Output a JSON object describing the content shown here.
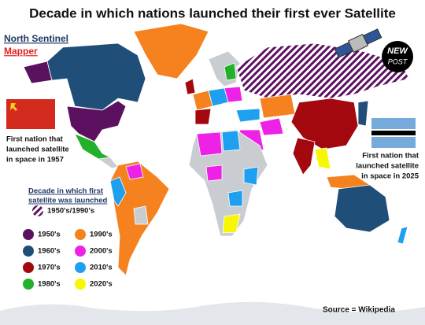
{
  "header": {
    "title": "Decade in which nations launched their first ever Satellite"
  },
  "brand": {
    "line1": "North Sentinel",
    "line2": "Mapper"
  },
  "logo": {
    "line1": "NEW",
    "line2": "POST"
  },
  "annotations": [
    {
      "lines": [
        "First nation that",
        "launched satellite",
        "in space in 1957"
      ]
    },
    {
      "lines": [
        "First nation that",
        "launched satellite",
        "in space in 2025"
      ]
    }
  ],
  "legend": {
    "title": [
      "Decade in which first",
      "satellite was launched"
    ],
    "items": [
      {
        "label": "1950's/1990's",
        "color": "#5c1160",
        "pattern": "hatch"
      },
      {
        "label": "1950's",
        "color": "#5c1160"
      },
      {
        "label": "1990's",
        "color": "#f5821f"
      },
      {
        "label": "1960's",
        "color": "#1f4e79"
      },
      {
        "label": "2000's",
        "color": "#ee22e6"
      },
      {
        "label": "1970's",
        "color": "#a3080e"
      },
      {
        "label": "2010's",
        "color": "#1f9ff0"
      },
      {
        "label": "1980's",
        "color": "#23b02b"
      },
      {
        "label": "2020's",
        "color": "#f7f700"
      }
    ]
  },
  "source": "Source = Wikipedia"
}
